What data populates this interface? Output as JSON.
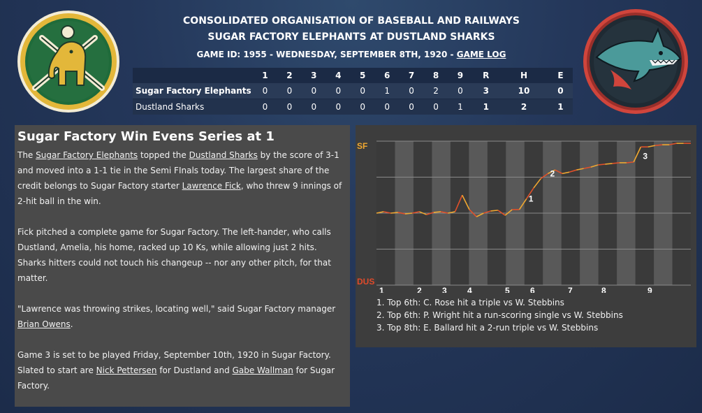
{
  "header": {
    "league": "CONSOLIDATED ORGANISATION OF BASEBALL AND RAILWAYS",
    "matchup": "SUGAR FACTORY ELEPHANTS AT DUSTLAND SHARKS",
    "game_info": "GAME ID: 1955 - WEDNESDAY, SEPTEMBER 8TH, 1920 - ",
    "game_log_link": "GAME LOG"
  },
  "logos": {
    "away": "elephant-logo",
    "home": "shark-logo"
  },
  "colors": {
    "away_green": "#1f6b3a",
    "away_gold": "#e3b73a",
    "home_red": "#d0453c",
    "home_teal": "#4b9a9a",
    "wp_orange": "#f0a830",
    "wp_red": "#e04a2a"
  },
  "linescore": {
    "headers": [
      "",
      "1",
      "2",
      "3",
      "4",
      "5",
      "6",
      "7",
      "8",
      "9",
      "R",
      "H",
      "E"
    ],
    "rows": [
      {
        "team": "Sugar Factory Elephants",
        "cells": [
          "0",
          "0",
          "0",
          "0",
          "0",
          "1",
          "0",
          "2",
          "0",
          "3",
          "10",
          "0"
        ]
      },
      {
        "team": "Dustland Sharks",
        "cells": [
          "0",
          "0",
          "0",
          "0",
          "0",
          "0",
          "0",
          "0",
          "1",
          "1",
          "2",
          "1"
        ]
      }
    ]
  },
  "story": {
    "title": "Sugar Factory Win Evens Series at 1",
    "p1": [
      "The ",
      "Sugar Factory Elephants",
      " topped the ",
      "Dustland Sharks",
      " by the score of 3-1 and moved into a 1-1 tie in the Semi FInals today. The largest share of the credit belongs to Sugar Factory starter ",
      "Lawrence Fick",
      ", who threw 9 innings of 2-hit ball in the win."
    ],
    "p2": "Fick pitched a complete game for Sugar Factory. The left-hander, who calls Dustland, Amelia, his home, racked up 10 Ks, while allowing just 2 hits. Sharks hitters could not touch his changeup -- nor any other pitch, for that matter.",
    "p3": [
      "\"Lawrence was throwing strikes, locating well,\" said Sugar Factory manager ",
      "Brian Owens",
      "."
    ],
    "p4": [
      "Game 3 is set to be played Friday, September 10th, 1920 in Sugar Factory. Slated to start are ",
      "Nick Pettersen",
      " for Dustland and ",
      "Gabe Wallman",
      " for Sugar Factory."
    ]
  },
  "chart_data": {
    "type": "line",
    "title": "",
    "top_label": "SF",
    "bottom_label": "DUS",
    "x_ticks": [
      "1",
      "2",
      "3",
      "4",
      "5",
      "6",
      "7",
      "8",
      "9"
    ],
    "ylim": [
      -1,
      1
    ],
    "values": [
      0.0,
      0.02,
      0.0,
      0.01,
      -0.01,
      0.0,
      0.02,
      -0.02,
      0.01,
      0.02,
      0.0,
      0.02,
      0.25,
      0.05,
      -0.05,
      0.0,
      0.03,
      0.04,
      -0.03,
      0.05,
      0.05,
      0.2,
      0.35,
      0.48,
      0.55,
      0.6,
      0.55,
      0.57,
      0.6,
      0.62,
      0.64,
      0.67,
      0.68,
      0.69,
      0.7,
      0.7,
      0.71,
      0.92,
      0.92,
      0.94,
      0.95,
      0.95,
      0.97,
      0.97,
      0.97
    ],
    "markers": [
      {
        "label": "1",
        "value": 0.2
      },
      {
        "label": "2",
        "value": 0.55
      },
      {
        "label": "3",
        "value": 0.79
      }
    ],
    "annotations": [
      "1. Top 6th: C. Rose hit a triple vs W. Stebbins",
      "2. Top 6th: P. Wright hit a run-scoring single vs W. Stebbins",
      "3. Top 8th: E. Ballard hit a 2-run triple vs W. Stebbins"
    ]
  }
}
